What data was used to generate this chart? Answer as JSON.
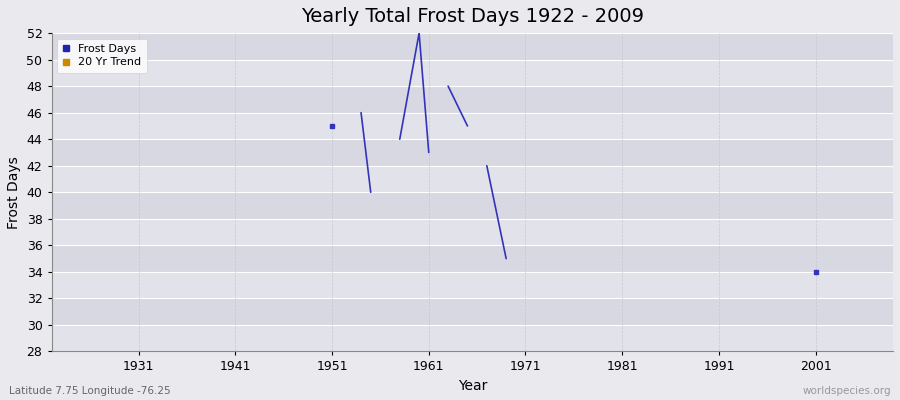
{
  "title": "Yearly Total Frost Days 1922 - 2009",
  "xlabel": "Year",
  "ylabel": "Frost Days",
  "xlim": [
    1922,
    2009
  ],
  "ylim": [
    28,
    52
  ],
  "yticks": [
    28,
    30,
    32,
    34,
    36,
    38,
    40,
    42,
    44,
    46,
    48,
    50,
    52
  ],
  "xticks": [
    1931,
    1941,
    1951,
    1961,
    1971,
    1981,
    1991,
    2001
  ],
  "segments": [
    [
      [
        1954,
        46
      ],
      [
        1955,
        40
      ]
    ],
    [
      [
        1958,
        44
      ],
      [
        1960,
        52
      ],
      [
        1961,
        43
      ]
    ],
    [
      [
        1963,
        48
      ],
      [
        1965,
        45
      ]
    ],
    [
      [
        1967,
        42
      ],
      [
        1969,
        35
      ]
    ]
  ],
  "scatter_data": [
    [
      1951,
      45
    ],
    [
      2001,
      34
    ]
  ],
  "line_color": "#3333bb",
  "scatter_color": "#3333bb",
  "legend_entries": [
    "Frost Days",
    "20 Yr Trend"
  ],
  "legend_colors": [
    "#2222aa",
    "#cc8800"
  ],
  "bg_color": "#eaeaee",
  "grid_color_h": "#ffffff",
  "grid_color_v": "#d8d8e0",
  "band_color_light": "#e8e8ef",
  "band_color_mid": "#dcdce5",
  "title_fontsize": 14,
  "axis_fontsize": 10,
  "tick_fontsize": 9,
  "subtitle": "Latitude 7.75 Longitude -76.25",
  "watermark": "worldspecies.org"
}
